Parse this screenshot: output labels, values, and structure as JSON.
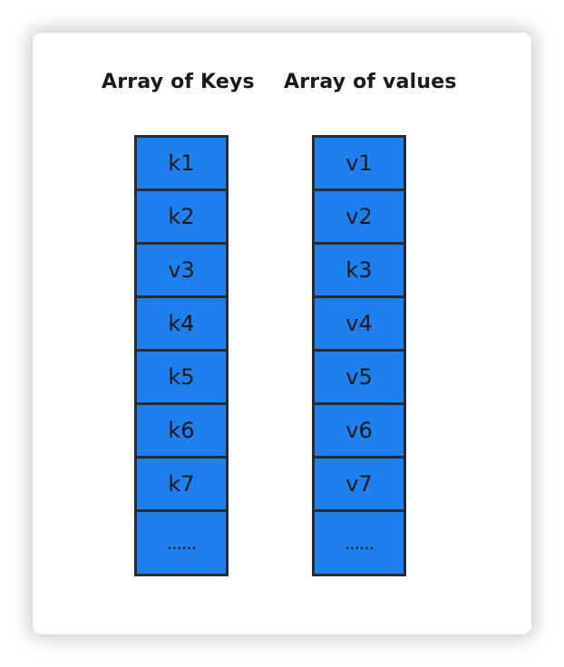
{
  "diagram": {
    "keys_title": "Array of Keys",
    "values_title": "Array of values",
    "keys": [
      "k1",
      "k2",
      "v3",
      "k4",
      "k5",
      "k6",
      "k7",
      "......"
    ],
    "values": [
      "v1",
      "v2",
      "k3",
      "v4",
      "v5",
      "v6",
      "v7",
      "......"
    ],
    "colors": {
      "cell_fill": "#1e80ee",
      "cell_border": "#2b2b2b",
      "text": "#1a1a1a"
    }
  }
}
